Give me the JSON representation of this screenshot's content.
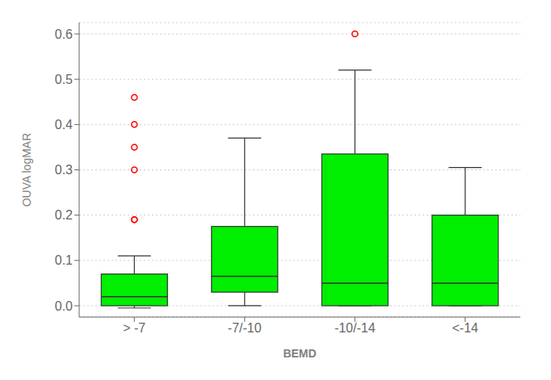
{
  "chart_data": {
    "type": "box",
    "xlabel": "BEMD",
    "ylabel": "OUVA logMAR",
    "categories": [
      "> -7",
      "-7/-10",
      "-10/-14",
      "<-14"
    ],
    "boxes": [
      {
        "q1": 0.0,
        "median": 0.02,
        "q3": 0.07,
        "whislo": -0.005,
        "whishi": 0.11
      },
      {
        "q1": 0.03,
        "median": 0.065,
        "q3": 0.175,
        "whislo": 0.0,
        "whishi": 0.37
      },
      {
        "q1": 0.0,
        "median": 0.05,
        "q3": 0.335,
        "whislo": 0.0,
        "whishi": 0.52
      },
      {
        "q1": 0.0,
        "median": 0.05,
        "q3": 0.2,
        "whislo": 0.0,
        "whishi": 0.305
      }
    ],
    "fliers": {
      "color": "#ff0000",
      "values": [
        [
          0.19,
          0.19,
          0.3,
          0.35,
          0.4,
          0.46
        ],
        [],
        [
          0.6
        ],
        []
      ]
    },
    "color": "#00ee00",
    "ylim": [
      -0.025,
      0.625
    ],
    "yticks": [
      {
        "value": 0.0,
        "label": "0.0"
      },
      0.1,
      0.2,
      0.3,
      0.4,
      0.5,
      0.6
    ],
    "grid": true
  }
}
